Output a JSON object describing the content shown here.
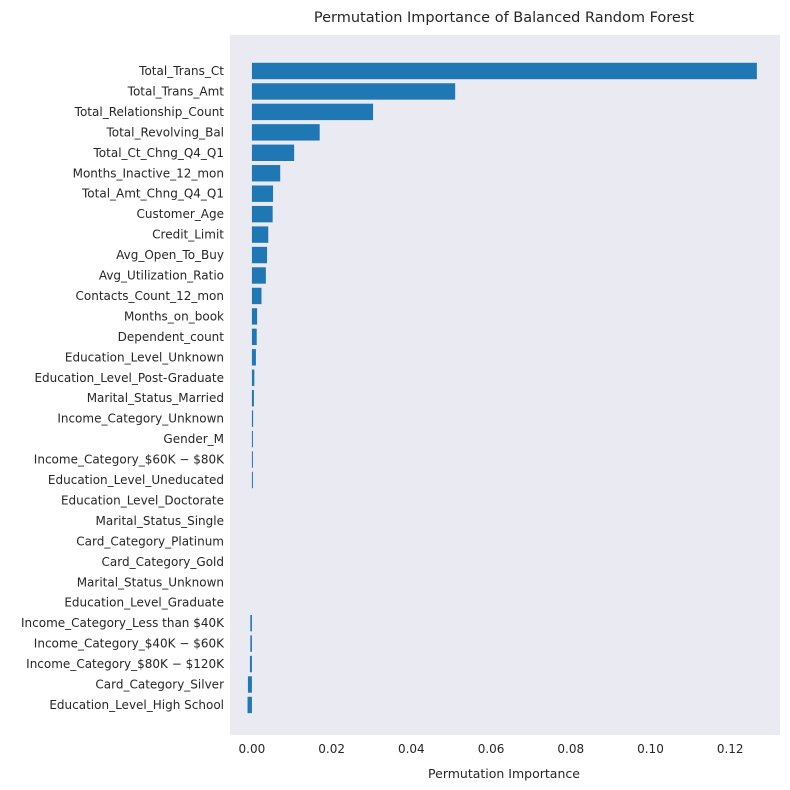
{
  "chart_data": {
    "type": "bar",
    "orientation": "horizontal",
    "title": "Permutation Importance of Balanced Random Forest",
    "xlabel": "Permutation Importance",
    "ylabel": "",
    "xlim": [
      -0.0055,
      0.1325
    ],
    "xticks": [
      {
        "value": 0.0,
        "label": "0.00"
      },
      {
        "value": 0.02,
        "label": "0.02"
      },
      {
        "value": 0.04,
        "label": "0.04"
      },
      {
        "value": 0.06,
        "label": "0.06"
      },
      {
        "value": 0.08,
        "label": "0.08"
      },
      {
        "value": 0.1,
        "label": "0.10"
      },
      {
        "value": 0.12,
        "label": "0.12"
      }
    ],
    "grid": false,
    "colors": {
      "bar": "#1f77b4",
      "plot_background": "#eaeaf2",
      "text": "#262626"
    },
    "categories": [
      "Total_Trans_Ct",
      "Total_Trans_Amt",
      "Total_Relationship_Count",
      "Total_Revolving_Bal",
      "Total_Ct_Chng_Q4_Q1",
      "Months_Inactive_12_mon",
      "Total_Amt_Chng_Q4_Q1",
      "Customer_Age",
      "Credit_Limit",
      "Avg_Open_To_Buy",
      "Avg_Utilization_Ratio",
      "Contacts_Count_12_mon",
      "Months_on_book",
      "Dependent_count",
      "Education_Level_Unknown",
      "Education_Level_Post-Graduate",
      "Marital_Status_Married",
      "Income_Category_Unknown",
      "Gender_M",
      "Income_Category_$60K − $80K",
      "Education_Level_Uneducated",
      "Education_Level_Doctorate",
      "Marital_Status_Single",
      "Card_Category_Platinum",
      "Card_Category_Gold",
      "Marital_Status_Unknown",
      "Education_Level_Graduate",
      "Income_Category_Less than $40K",
      "Income_Category_$40K − $60K",
      "Income_Category_$80K − $120K",
      "Card_Category_Silver",
      "Education_Level_High School"
    ],
    "values": [
      0.1267,
      0.051,
      0.0304,
      0.017,
      0.0106,
      0.0071,
      0.0053,
      0.0052,
      0.0041,
      0.0038,
      0.0035,
      0.0024,
      0.0013,
      0.0012,
      0.001,
      0.0006,
      0.0005,
      0.0003,
      0.0002,
      0.0002,
      0.0001,
      0.0,
      0.0,
      0.0,
      0.0,
      0.0,
      0.0,
      -0.0004,
      -0.0004,
      -0.0005,
      -0.001,
      -0.0011
    ]
  }
}
